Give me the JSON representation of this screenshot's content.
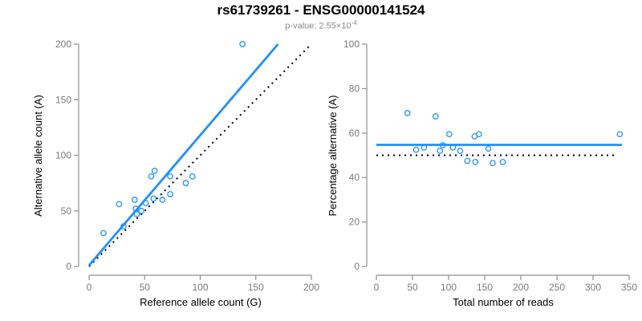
{
  "header": {
    "title": "rs61739261 - ENSG00000141524",
    "subtitle_prefix": "p-value: ",
    "subtitle_mantissa": "2.55×10",
    "subtitle_exponent": "-4"
  },
  "colors": {
    "accent_blue": "#1E90FF",
    "reference_black": "#000000",
    "axis_line": "#8f8f8f",
    "tick_label": "#7a7a7a",
    "axis_title": "#000000",
    "subtitle_gray": "#8a8a8a"
  },
  "chart_data": [
    {
      "type": "scatter",
      "name": "allele-counts",
      "xlabel": "Reference allele count (G)",
      "ylabel": "Alternative allele count (A)",
      "xlim": [
        0,
        200
      ],
      "ylim": [
        0,
        200
      ],
      "xticks": [
        0,
        50,
        100,
        150,
        200
      ],
      "yticks": [
        0,
        50,
        100,
        150,
        200
      ],
      "points": [
        [
          13,
          30
        ],
        [
          27,
          56
        ],
        [
          31,
          36
        ],
        [
          41,
          60
        ],
        [
          42,
          52
        ],
        [
          43,
          47
        ],
        [
          47,
          50
        ],
        [
          51,
          57
        ],
        [
          56,
          81
        ],
        [
          58,
          61
        ],
        [
          59,
          86
        ],
        [
          66,
          60
        ],
        [
          73,
          65
        ],
        [
          73,
          81
        ],
        [
          87,
          75
        ],
        [
          93,
          81
        ],
        [
          138,
          200
        ]
      ],
      "lines": [
        {
          "name": "identity-line",
          "x1": 0,
          "y1": 0,
          "x2": 200,
          "y2": 200,
          "color": "#000000",
          "style": "dotted",
          "width": 2
        },
        {
          "name": "fit-line",
          "x1": 0,
          "y1": 1,
          "x2": 170,
          "y2": 200,
          "color": "#1E90FF",
          "style": "solid",
          "width": 2.8
        }
      ]
    },
    {
      "type": "scatter",
      "name": "percentage-alternative",
      "xlabel": "Total number of reads",
      "ylabel": "Percentage alternative (A)",
      "xlim": [
        0,
        350
      ],
      "ylim": [
        0,
        100
      ],
      "xticks": [
        0,
        50,
        100,
        150,
        200,
        250,
        300,
        350
      ],
      "yticks": [
        0,
        20,
        40,
        60,
        80,
        100
      ],
      "points": [
        [
          43,
          69
        ],
        [
          55,
          52.5
        ],
        [
          66,
          53.5
        ],
        [
          82,
          67.5
        ],
        [
          88,
          52
        ],
        [
          92,
          54.5
        ],
        [
          101,
          59.5
        ],
        [
          106,
          53.5
        ],
        [
          116,
          52
        ],
        [
          126,
          47.5
        ],
        [
          136,
          58.5
        ],
        [
          137,
          47
        ],
        [
          142,
          59.5
        ],
        [
          155,
          53
        ],
        [
          161,
          46.5
        ],
        [
          175,
          47
        ],
        [
          337,
          59.5
        ]
      ],
      "lines": [
        {
          "name": "reference-line",
          "x1": 0,
          "y1": 50,
          "x2": 332,
          "y2": 50,
          "color": "#000000",
          "style": "dotted",
          "width": 2
        },
        {
          "name": "mean-line",
          "x1": 0,
          "y1": 54.7,
          "x2": 340,
          "y2": 54.7,
          "color": "#1E90FF",
          "style": "solid",
          "width": 2.8
        }
      ]
    }
  ]
}
